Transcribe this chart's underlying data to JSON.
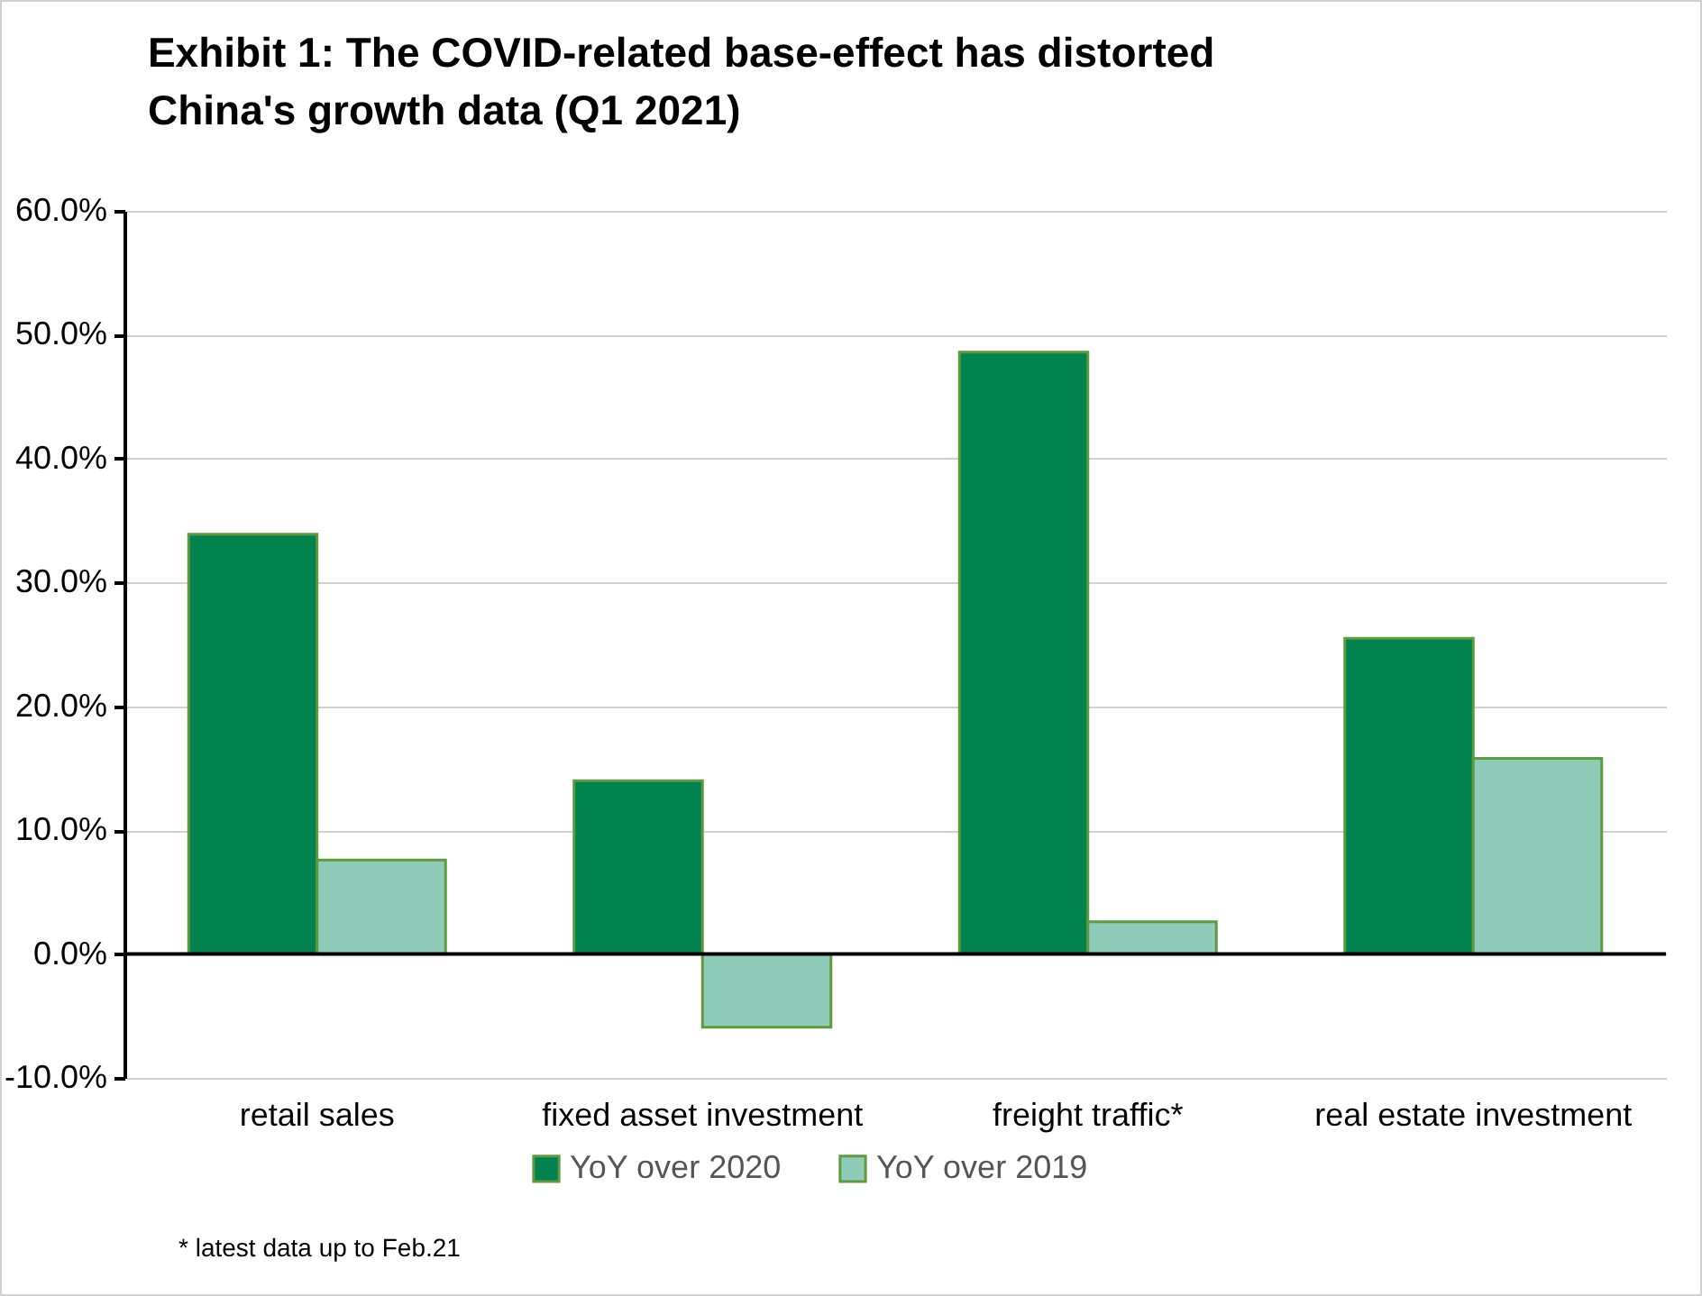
{
  "chart_data": {
    "type": "bar",
    "title": "Exhibit 1: The COVID-related base-effect has distorted China's growth data (Q1 2021)",
    "categories": [
      "retail sales",
      "fixed asset investment",
      "freight traffic*",
      "real estate investment"
    ],
    "series": [
      {
        "name": "YoY over 2020",
        "color": "#00834f",
        "values": [
          33.9,
          14.0,
          48.6,
          25.5
        ]
      },
      {
        "name": "YoY over 2019",
        "color": "#8ecbb8",
        "values": [
          7.6,
          -5.9,
          2.6,
          15.8
        ]
      }
    ],
    "ylim": [
      -10,
      60
    ],
    "yticks": [
      {
        "value": -10,
        "label": "-10.0%"
      },
      {
        "value": 0,
        "label": "0.0%"
      },
      {
        "value": 10,
        "label": "10.0%"
      },
      {
        "value": 20,
        "label": "20.0%"
      },
      {
        "value": 30,
        "label": "30.0%"
      },
      {
        "value": 40,
        "label": "40.0%"
      },
      {
        "value": 50,
        "label": "50.0%"
      },
      {
        "value": 60,
        "label": "60.0%"
      }
    ],
    "grid": "y",
    "legend": "bottom",
    "annotations": [
      "* latest data up to Feb.21"
    ]
  }
}
